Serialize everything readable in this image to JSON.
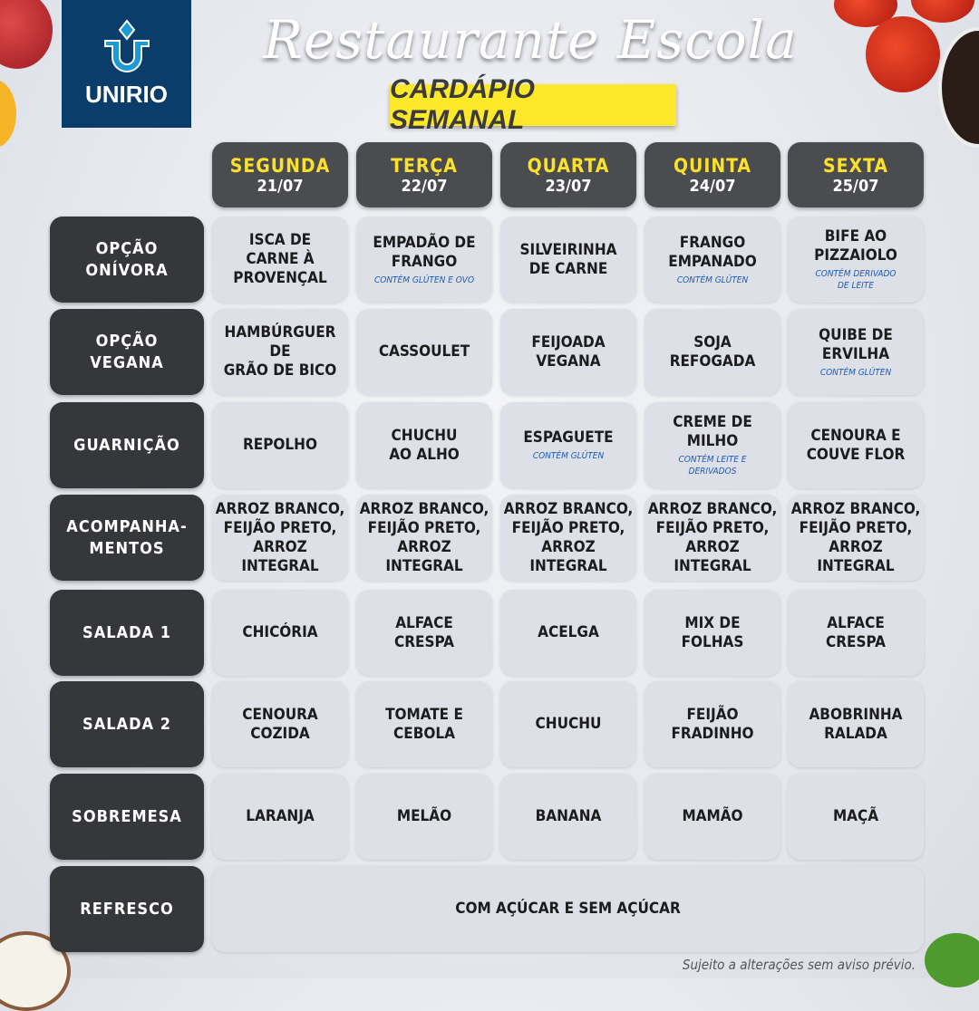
{
  "header": {
    "logo_text": "UNIRIO",
    "title": "Restaurante Escola",
    "subtitle": "CARDÁPIO SEMANAL"
  },
  "days": [
    {
      "name": "SEGUNDA",
      "date": "21/07"
    },
    {
      "name": "TERÇA",
      "date": "22/07"
    },
    {
      "name": "QUARTA",
      "date": "23/07"
    },
    {
      "name": "QUINTA",
      "date": "24/07"
    },
    {
      "name": "SEXTA",
      "date": "25/07"
    }
  ],
  "rows": [
    {
      "label": "OPÇÃO\nONÍVORA",
      "cells": [
        {
          "dish": "ISCA DE\nCARNE À\nPROVENÇAL"
        },
        {
          "dish": "EMPADÃO DE\nFRANGO",
          "note": "CONTÉM GLÚTEN E OVO"
        },
        {
          "dish": "SILVEIRINHA\nDE CARNE"
        },
        {
          "dish": "FRANGO\nEMPANADO",
          "note": "CONTÉM GLÚTEN"
        },
        {
          "dish": "BIFE AO\nPIZZAIOLO",
          "note": "CONTÉM DERIVADO\nDE LEITE"
        }
      ]
    },
    {
      "label": "OPÇÃO\nVEGANA",
      "cells": [
        {
          "dish": "HAMBÚRGUER\nDE\nGRÃO DE BICO"
        },
        {
          "dish": "CASSOULET"
        },
        {
          "dish": "FEIJOADA\nVEGANA"
        },
        {
          "dish": "SOJA\nREFOGADA"
        },
        {
          "dish": "QUIBE DE\nERVILHA",
          "note": "CONTÉM GLÚTEN"
        }
      ]
    },
    {
      "label": "GUARNIÇÃO",
      "cells": [
        {
          "dish": "REPOLHO"
        },
        {
          "dish": "CHUCHU\nAO ALHO"
        },
        {
          "dish": "ESPAGUETE",
          "note": "CONTÉM GLÚTEN"
        },
        {
          "dish": "CREME DE\nMILHO",
          "note": "CONTÉM LEITE E\nDERIVADOS"
        },
        {
          "dish": "CENOURA E\nCOUVE FLOR"
        }
      ]
    },
    {
      "label": "ACOMPANHA-\nMENTOS",
      "cells": [
        {
          "dish": "ARROZ BRANCO,\nFEIJÃO PRETO,\nARROZ INTEGRAL"
        },
        {
          "dish": "ARROZ BRANCO,\nFEIJÃO PRETO,\nARROZ INTEGRAL"
        },
        {
          "dish": "ARROZ BRANCO,\nFEIJÃO PRETO,\nARROZ INTEGRAL"
        },
        {
          "dish": "ARROZ BRANCO,\nFEIJÃO PRETO,\nARROZ INTEGRAL"
        },
        {
          "dish": "ARROZ BRANCO,\nFEIJÃO PRETO,\nARROZ INTEGRAL"
        }
      ]
    },
    {
      "label": "SALADA 1",
      "cells": [
        {
          "dish": "CHICÓRIA"
        },
        {
          "dish": "ALFACE\nCRESPA"
        },
        {
          "dish": "ACELGA"
        },
        {
          "dish": "MIX DE\nFOLHAS"
        },
        {
          "dish": "ALFACE\nCRESPA"
        }
      ]
    },
    {
      "label": "SALADA 2",
      "cells": [
        {
          "dish": "CENOURA\nCOZIDA"
        },
        {
          "dish": "TOMATE E\nCEBOLA"
        },
        {
          "dish": "CHUCHU"
        },
        {
          "dish": "FEIJÃO\nFRADINHO"
        },
        {
          "dish": "ABOBRINHA\nRALADA"
        }
      ]
    },
    {
      "label": "SOBREMESA",
      "cells": [
        {
          "dish": "LARANJA"
        },
        {
          "dish": "MELÃO"
        },
        {
          "dish": "BANANA"
        },
        {
          "dish": "MAMÃO"
        },
        {
          "dish": "MAÇÃ"
        }
      ]
    }
  ],
  "refresco": {
    "label": "REFRESCO",
    "value": "COM AÇÚCAR E SEM AÇÚCAR"
  },
  "footer": "Sujeito a alterações sem aviso prévio.",
  "colors": {
    "day_name": "#fde02a",
    "header_box": "#4b4c50",
    "label_box": "#36373b",
    "cell": "#dde0e7",
    "note": "#1e5bb8",
    "subtitle_bg": "#fde82a",
    "logo_bg": "#0b3d6b"
  }
}
